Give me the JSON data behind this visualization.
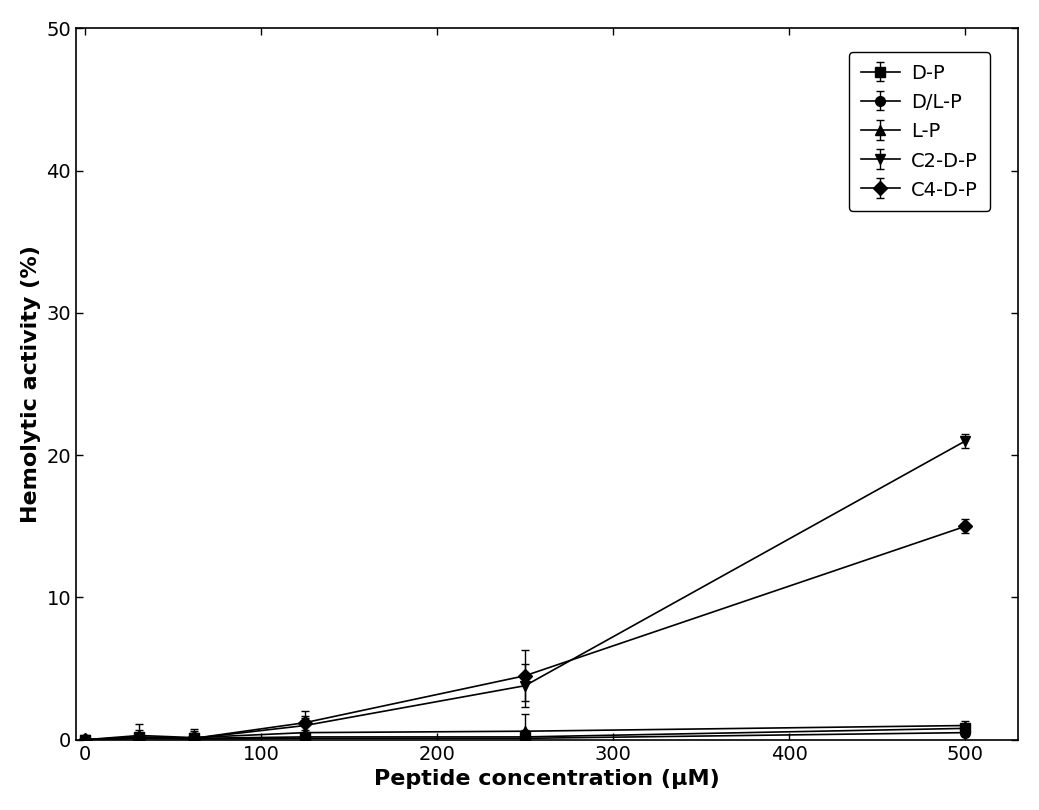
{
  "x": [
    0,
    31,
    62,
    125,
    250,
    500
  ],
  "series": {
    "D-P": {
      "y": [
        0.0,
        0.2,
        0.1,
        0.2,
        0.2,
        0.8
      ],
      "yerr": [
        0.0,
        0.5,
        0.5,
        0.5,
        0.5,
        0.3
      ],
      "marker": "s",
      "label": "D-P"
    },
    "D/L-P": {
      "y": [
        0.0,
        0.1,
        0.05,
        0.1,
        0.1,
        0.5
      ],
      "yerr": [
        0.0,
        0.3,
        0.2,
        0.3,
        0.3,
        0.2
      ],
      "marker": "o",
      "label": "D/L-P"
    },
    "L-P": {
      "y": [
        0.0,
        0.3,
        0.15,
        0.5,
        0.6,
        1.0
      ],
      "yerr": [
        0.0,
        0.8,
        0.6,
        1.2,
        1.2,
        0.3
      ],
      "marker": "^",
      "label": "L-P"
    },
    "C2-D-P": {
      "y": [
        0.0,
        0.1,
        0.1,
        1.0,
        3.8,
        21.0
      ],
      "yerr": [
        0.0,
        0.2,
        0.2,
        0.5,
        1.5,
        0.5
      ],
      "marker": "v",
      "label": "C2-D-P"
    },
    "C4-D-P": {
      "y": [
        0.0,
        0.15,
        0.1,
        1.2,
        4.5,
        15.0
      ],
      "yerr": [
        0.0,
        0.3,
        0.3,
        0.8,
        1.8,
        0.5
      ],
      "marker": "D",
      "label": "C4-D-P"
    }
  },
  "xlabel": "Peptide concentration (μM)",
  "ylabel": "Hemolytic activity (%)",
  "xlim": [
    -5,
    530
  ],
  "ylim": [
    0,
    50
  ],
  "yticks": [
    0,
    10,
    20,
    30,
    40,
    50
  ],
  "xticks": [
    0,
    100,
    200,
    300,
    400,
    500
  ],
  "color": "#000000",
  "linewidth": 1.2,
  "markersize": 7,
  "fontsize_label": 16,
  "fontsize_tick": 14,
  "fontsize_legend": 14,
  "capsize": 3,
  "capthick": 1.0,
  "elinewidth": 1.0
}
